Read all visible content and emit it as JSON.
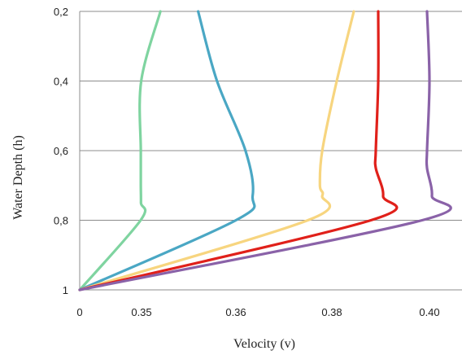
{
  "chart_data": {
    "type": "line",
    "title": "",
    "xlabel": "Velocity (v)",
    "ylabel": "Water Depth (h)",
    "x_tick_labels": [
      "0",
      "0.35",
      "0.36",
      "0.38",
      "0.40"
    ],
    "y_tick_labels": [
      "0,2",
      "0,4",
      "0,6",
      "0,8",
      "1"
    ],
    "y_values": [
      0.2,
      0.4,
      0.6,
      0.8,
      1.0
    ],
    "y_inverted": true,
    "grid": true,
    "legend": "none",
    "series": [
      {
        "color": "#7fd4a0",
        "points": [
          [
            0.0,
            1.0
          ],
          [
            0.345,
            0.8
          ],
          [
            0.347,
            0.75
          ],
          [
            0.346,
            0.7
          ],
          [
            0.346,
            0.6
          ],
          [
            0.348,
            0.4
          ],
          [
            0.352,
            0.2
          ]
        ]
      },
      {
        "color": "#4aa7c4",
        "points": [
          [
            0.0,
            1.0
          ],
          [
            0.36,
            0.8
          ],
          [
            0.3635,
            0.73
          ],
          [
            0.362,
            0.6
          ],
          [
            0.358,
            0.4
          ],
          [
            0.356,
            0.2
          ]
        ]
      },
      {
        "color": "#f7d57f",
        "points": [
          [
            0.0,
            1.0
          ],
          [
            0.375,
            0.8
          ],
          [
            0.378,
            0.73
          ],
          [
            0.3775,
            0.7
          ],
          [
            0.378,
            0.6
          ],
          [
            0.381,
            0.4
          ],
          [
            0.3845,
            0.2
          ]
        ]
      },
      {
        "color": "#e0201a",
        "points": [
          [
            0.0,
            1.0
          ],
          [
            0.388,
            0.8
          ],
          [
            0.3905,
            0.73
          ],
          [
            0.389,
            0.65
          ],
          [
            0.389,
            0.6
          ],
          [
            0.3895,
            0.4
          ],
          [
            0.3895,
            0.2
          ]
        ]
      },
      {
        "color": "#8a62a8",
        "points": [
          [
            0.0,
            1.0
          ],
          [
            0.3985,
            0.8
          ],
          [
            0.4005,
            0.73
          ],
          [
            0.3995,
            0.65
          ],
          [
            0.3995,
            0.6
          ],
          [
            0.4,
            0.4
          ],
          [
            0.3995,
            0.2
          ]
        ]
      }
    ]
  }
}
